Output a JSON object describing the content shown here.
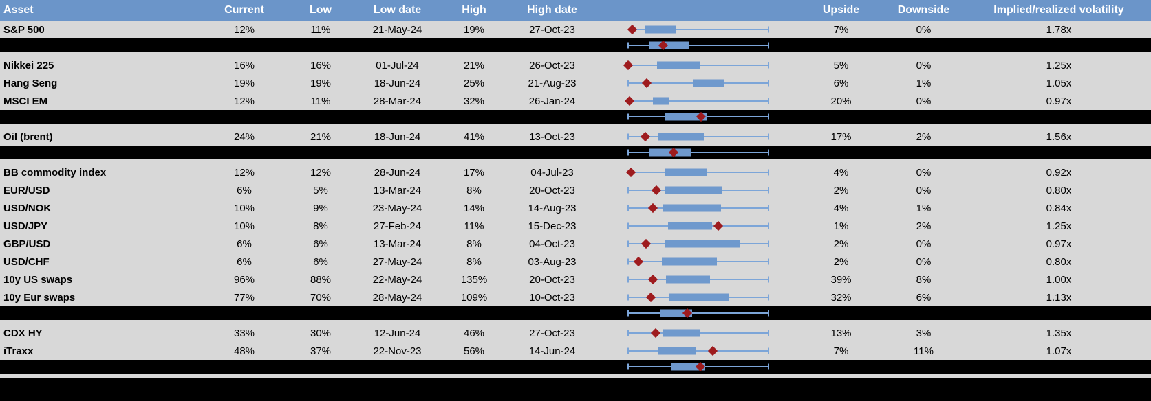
{
  "colors": {
    "header_bg": "#6b95c9",
    "row_bg": "#d8d8d8",
    "separator_bg": "#000000",
    "box_blue": "#6f99cd",
    "whisker_blue": "#7ca5d8",
    "diamond_red": "#9e1b1e",
    "header_text": "#ffffff",
    "text": "#000000"
  },
  "columns": {
    "asset": "Asset",
    "current": "Current",
    "low": "Low",
    "low_date": "Low date",
    "high": "High",
    "high_date": "High date",
    "upside": "Upside",
    "downside": "Downside",
    "vol": "Implied/realized volatility"
  },
  "chart_data": {
    "type": "table",
    "title": "",
    "legend": "none",
    "axes": "none",
    "marker_shapes": {
      "box": "interquartile-bar",
      "diamond": "current-value-marker",
      "line": "min-max-whisker"
    },
    "boxplot_units": "percent of chart-column width",
    "rows": [
      {
        "type": "data",
        "asset": "S&P 500",
        "current": "12%",
        "low": "11%",
        "low_date": "21-May-24",
        "high": "19%",
        "high_date": "27-Oct-23",
        "upside": "7%",
        "downside": "0%",
        "vol": "1.78x",
        "boxplot": {
          "whisker_start_pct": 19.3,
          "box_start_pct": 25.6,
          "box_end_pct": 40.3,
          "diamond_pct": 19.3,
          "whisker_end_pct": 84.3
        }
      },
      {
        "type": "summary",
        "boxplot": {
          "whisker_start_pct": 17.4,
          "box_start_pct": 27.5,
          "box_end_pct": 46.6,
          "diamond_pct": 34.1,
          "whisker_end_pct": 84.3
        }
      },
      {
        "type": "data",
        "asset": "Nikkei 225",
        "current": "16%",
        "low": "16%",
        "low_date": "01-Jul-24",
        "high": "21%",
        "high_date": "26-Oct-23",
        "upside": "5%",
        "downside": "0%",
        "vol": "1.25x",
        "boxplot": {
          "whisker_start_pct": 17.4,
          "box_start_pct": 31.1,
          "box_end_pct": 51.5,
          "diamond_pct": 17.4,
          "whisker_end_pct": 84.3
        }
      },
      {
        "type": "data",
        "asset": "Hang Seng",
        "current": "19%",
        "low": "19%",
        "low_date": "18-Jun-24",
        "high": "25%",
        "high_date": "21-Aug-23",
        "upside": "6%",
        "downside": "1%",
        "vol": "1.05x",
        "boxplot": {
          "whisker_start_pct": 17.4,
          "box_start_pct": 48.2,
          "box_end_pct": 63.0,
          "diamond_pct": 26.2,
          "whisker_end_pct": 84.3
        }
      },
      {
        "type": "data",
        "asset": "MSCI EM",
        "current": "12%",
        "low": "11%",
        "low_date": "28-Mar-24",
        "high": "32%",
        "high_date": "26-Jan-24",
        "upside": "20%",
        "downside": "0%",
        "vol": "0.97x",
        "boxplot": {
          "whisker_start_pct": 18.0,
          "box_start_pct": 29.2,
          "box_end_pct": 37.0,
          "diamond_pct": 18.0,
          "whisker_end_pct": 84.3
        }
      },
      {
        "type": "summary",
        "boxplot": {
          "whisker_start_pct": 17.4,
          "box_start_pct": 34.8,
          "box_end_pct": 54.8,
          "diamond_pct": 52.1,
          "whisker_end_pct": 84.3
        }
      },
      {
        "type": "data",
        "asset": "Oil (brent)",
        "current": "24%",
        "low": "21%",
        "low_date": "18-Jun-24",
        "high": "41%",
        "high_date": "13-Oct-23",
        "upside": "17%",
        "downside": "2%",
        "vol": "1.56x",
        "boxplot": {
          "whisker_start_pct": 17.4,
          "box_start_pct": 31.8,
          "box_end_pct": 53.4,
          "diamond_pct": 25.6,
          "whisker_end_pct": 84.3
        }
      },
      {
        "type": "summary",
        "boxplot": {
          "whisker_start_pct": 17.4,
          "box_start_pct": 27.2,
          "box_end_pct": 47.5,
          "diamond_pct": 39.0,
          "whisker_end_pct": 84.3
        }
      },
      {
        "type": "data",
        "asset": "BB commodity index",
        "current": "12%",
        "low": "12%",
        "low_date": "28-Jun-24",
        "high": "17%",
        "high_date": "04-Jul-23",
        "upside": "4%",
        "downside": "0%",
        "vol": "0.92x",
        "boxplot": {
          "whisker_start_pct": 18.7,
          "box_start_pct": 34.8,
          "box_end_pct": 54.8,
          "diamond_pct": 18.7,
          "whisker_end_pct": 84.3
        }
      },
      {
        "type": "data",
        "asset": "EUR/USD",
        "current": "6%",
        "low": "5%",
        "low_date": "13-Mar-24",
        "high": "8%",
        "high_date": "20-Oct-23",
        "upside": "2%",
        "downside": "0%",
        "vol": "0.80x",
        "boxplot": {
          "whisker_start_pct": 17.4,
          "box_start_pct": 34.8,
          "box_end_pct": 62.0,
          "diamond_pct": 30.8,
          "whisker_end_pct": 84.3
        }
      },
      {
        "type": "data",
        "asset": "USD/NOK",
        "current": "10%",
        "low": "9%",
        "low_date": "23-May-24",
        "high": "14%",
        "high_date": "14-Aug-23",
        "upside": "4%",
        "downside": "1%",
        "vol": "0.84x",
        "boxplot": {
          "whisker_start_pct": 17.4,
          "box_start_pct": 33.8,
          "box_end_pct": 61.6,
          "diamond_pct": 29.2,
          "whisker_end_pct": 84.3
        }
      },
      {
        "type": "data",
        "asset": "USD/JPY",
        "current": "10%",
        "low": "8%",
        "low_date": "27-Feb-24",
        "high": "11%",
        "high_date": "15-Dec-23",
        "upside": "1%",
        "downside": "2%",
        "vol": "1.25x",
        "boxplot": {
          "whisker_start_pct": 17.4,
          "box_start_pct": 36.4,
          "box_end_pct": 57.4,
          "diamond_pct": 60.3,
          "whisker_end_pct": 84.3
        }
      },
      {
        "type": "data",
        "asset": "GBP/USD",
        "current": "6%",
        "low": "6%",
        "low_date": "13-Mar-24",
        "high": "8%",
        "high_date": "04-Oct-23",
        "upside": "2%",
        "downside": "0%",
        "vol": "0.97x",
        "boxplot": {
          "whisker_start_pct": 17.4,
          "box_start_pct": 34.8,
          "box_end_pct": 70.5,
          "diamond_pct": 25.9,
          "whisker_end_pct": 84.3
        }
      },
      {
        "type": "data",
        "asset": "USD/CHF",
        "current": "6%",
        "low": "6%",
        "low_date": "27-May-24",
        "high": "8%",
        "high_date": "03-Aug-23",
        "upside": "2%",
        "downside": "0%",
        "vol": "0.80x",
        "boxplot": {
          "whisker_start_pct": 17.4,
          "box_start_pct": 33.4,
          "box_end_pct": 59.7,
          "diamond_pct": 22.3,
          "whisker_end_pct": 84.3
        }
      },
      {
        "type": "data",
        "asset": "10y US swaps",
        "current": "96%",
        "low": "88%",
        "low_date": "22-May-24",
        "high": "135%",
        "high_date": "20-Oct-23",
        "upside": "39%",
        "downside": "8%",
        "vol": "1.00x",
        "boxplot": {
          "whisker_start_pct": 17.4,
          "box_start_pct": 35.4,
          "box_end_pct": 56.4,
          "diamond_pct": 29.2,
          "whisker_end_pct": 84.3
        }
      },
      {
        "type": "data",
        "asset": "10y Eur swaps",
        "current": "77%",
        "low": "70%",
        "low_date": "28-May-24",
        "high": "109%",
        "high_date": "10-Oct-23",
        "upside": "32%",
        "downside": "6%",
        "vol": "1.13x",
        "boxplot": {
          "whisker_start_pct": 17.4,
          "box_start_pct": 36.7,
          "box_end_pct": 65.2,
          "diamond_pct": 28.2,
          "whisker_end_pct": 84.3
        }
      },
      {
        "type": "summary",
        "boxplot": {
          "whisker_start_pct": 17.4,
          "box_start_pct": 32.8,
          "box_end_pct": 47.9,
          "diamond_pct": 45.6,
          "whisker_end_pct": 84.3
        }
      },
      {
        "type": "data",
        "asset": "CDX HY",
        "current": "33%",
        "low": "30%",
        "low_date": "12-Jun-24",
        "high": "46%",
        "high_date": "27-Oct-23",
        "upside": "13%",
        "downside": "3%",
        "vol": "1.35x",
        "boxplot": {
          "whisker_start_pct": 17.4,
          "box_start_pct": 33.8,
          "box_end_pct": 51.5,
          "diamond_pct": 30.5,
          "whisker_end_pct": 84.3
        }
      },
      {
        "type": "data",
        "asset": "iTraxx",
        "current": "48%",
        "low": "37%",
        "low_date": "22-Nov-23",
        "high": "56%",
        "high_date": "14-Jun-24",
        "upside": "7%",
        "downside": "11%",
        "vol": "1.07x",
        "boxplot": {
          "whisker_start_pct": 17.4,
          "box_start_pct": 31.8,
          "box_end_pct": 49.5,
          "diamond_pct": 57.7,
          "whisker_end_pct": 84.3
        }
      },
      {
        "type": "summary",
        "boxplot": {
          "whisker_start_pct": 17.4,
          "box_start_pct": 37.7,
          "box_end_pct": 54.1,
          "diamond_pct": 51.8,
          "whisker_end_pct": 84.3
        }
      }
    ]
  }
}
